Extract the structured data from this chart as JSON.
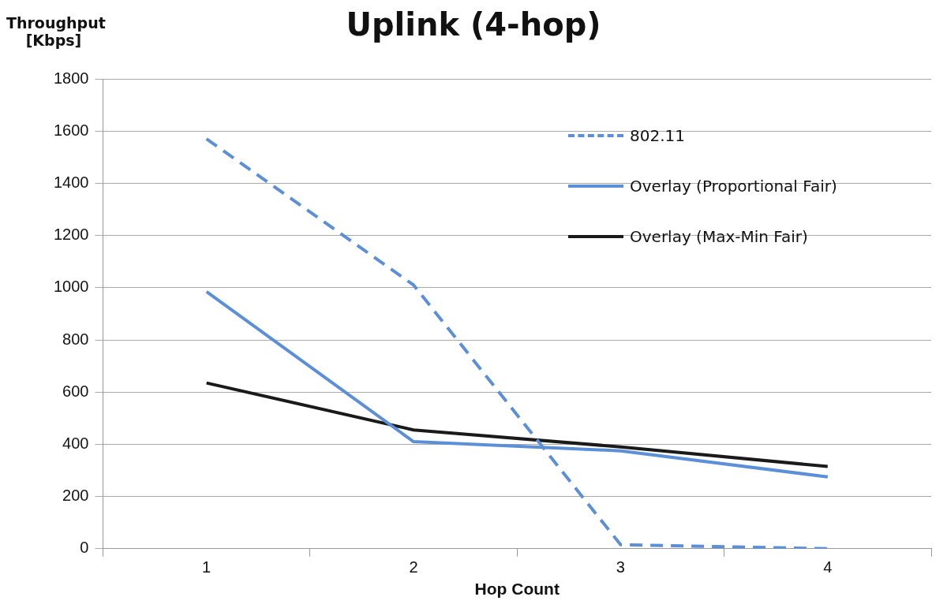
{
  "chart_data": {
    "type": "line",
    "title": "Uplink (4-hop)",
    "xlabel": "Hop Count",
    "ylabel": "Throughput [Kbps]",
    "categories": [
      "1",
      "2",
      "3",
      "4"
    ],
    "series": [
      {
        "name": "802.11",
        "color": "#5b8fd8",
        "values": [
          1570,
          1010,
          15,
          0
        ],
        "line_style": "dashed"
      },
      {
        "name": "Overlay (Proportional Fair)",
        "color": "#5b8fd8",
        "values": [
          985,
          410,
          375,
          275
        ],
        "line_style": "solid"
      },
      {
        "name": "Overlay (Max-Min Fair)",
        "color": "#1a1a1a",
        "values": [
          635,
          455,
          390,
          315
        ],
        "line_style": "solid"
      }
    ],
    "ylim": [
      0,
      1800
    ],
    "yticks": [
      0,
      200,
      400,
      600,
      800,
      1000,
      1200,
      1400,
      1600,
      1800
    ],
    "grid": "y",
    "legend": "top right",
    "marker": "none"
  }
}
